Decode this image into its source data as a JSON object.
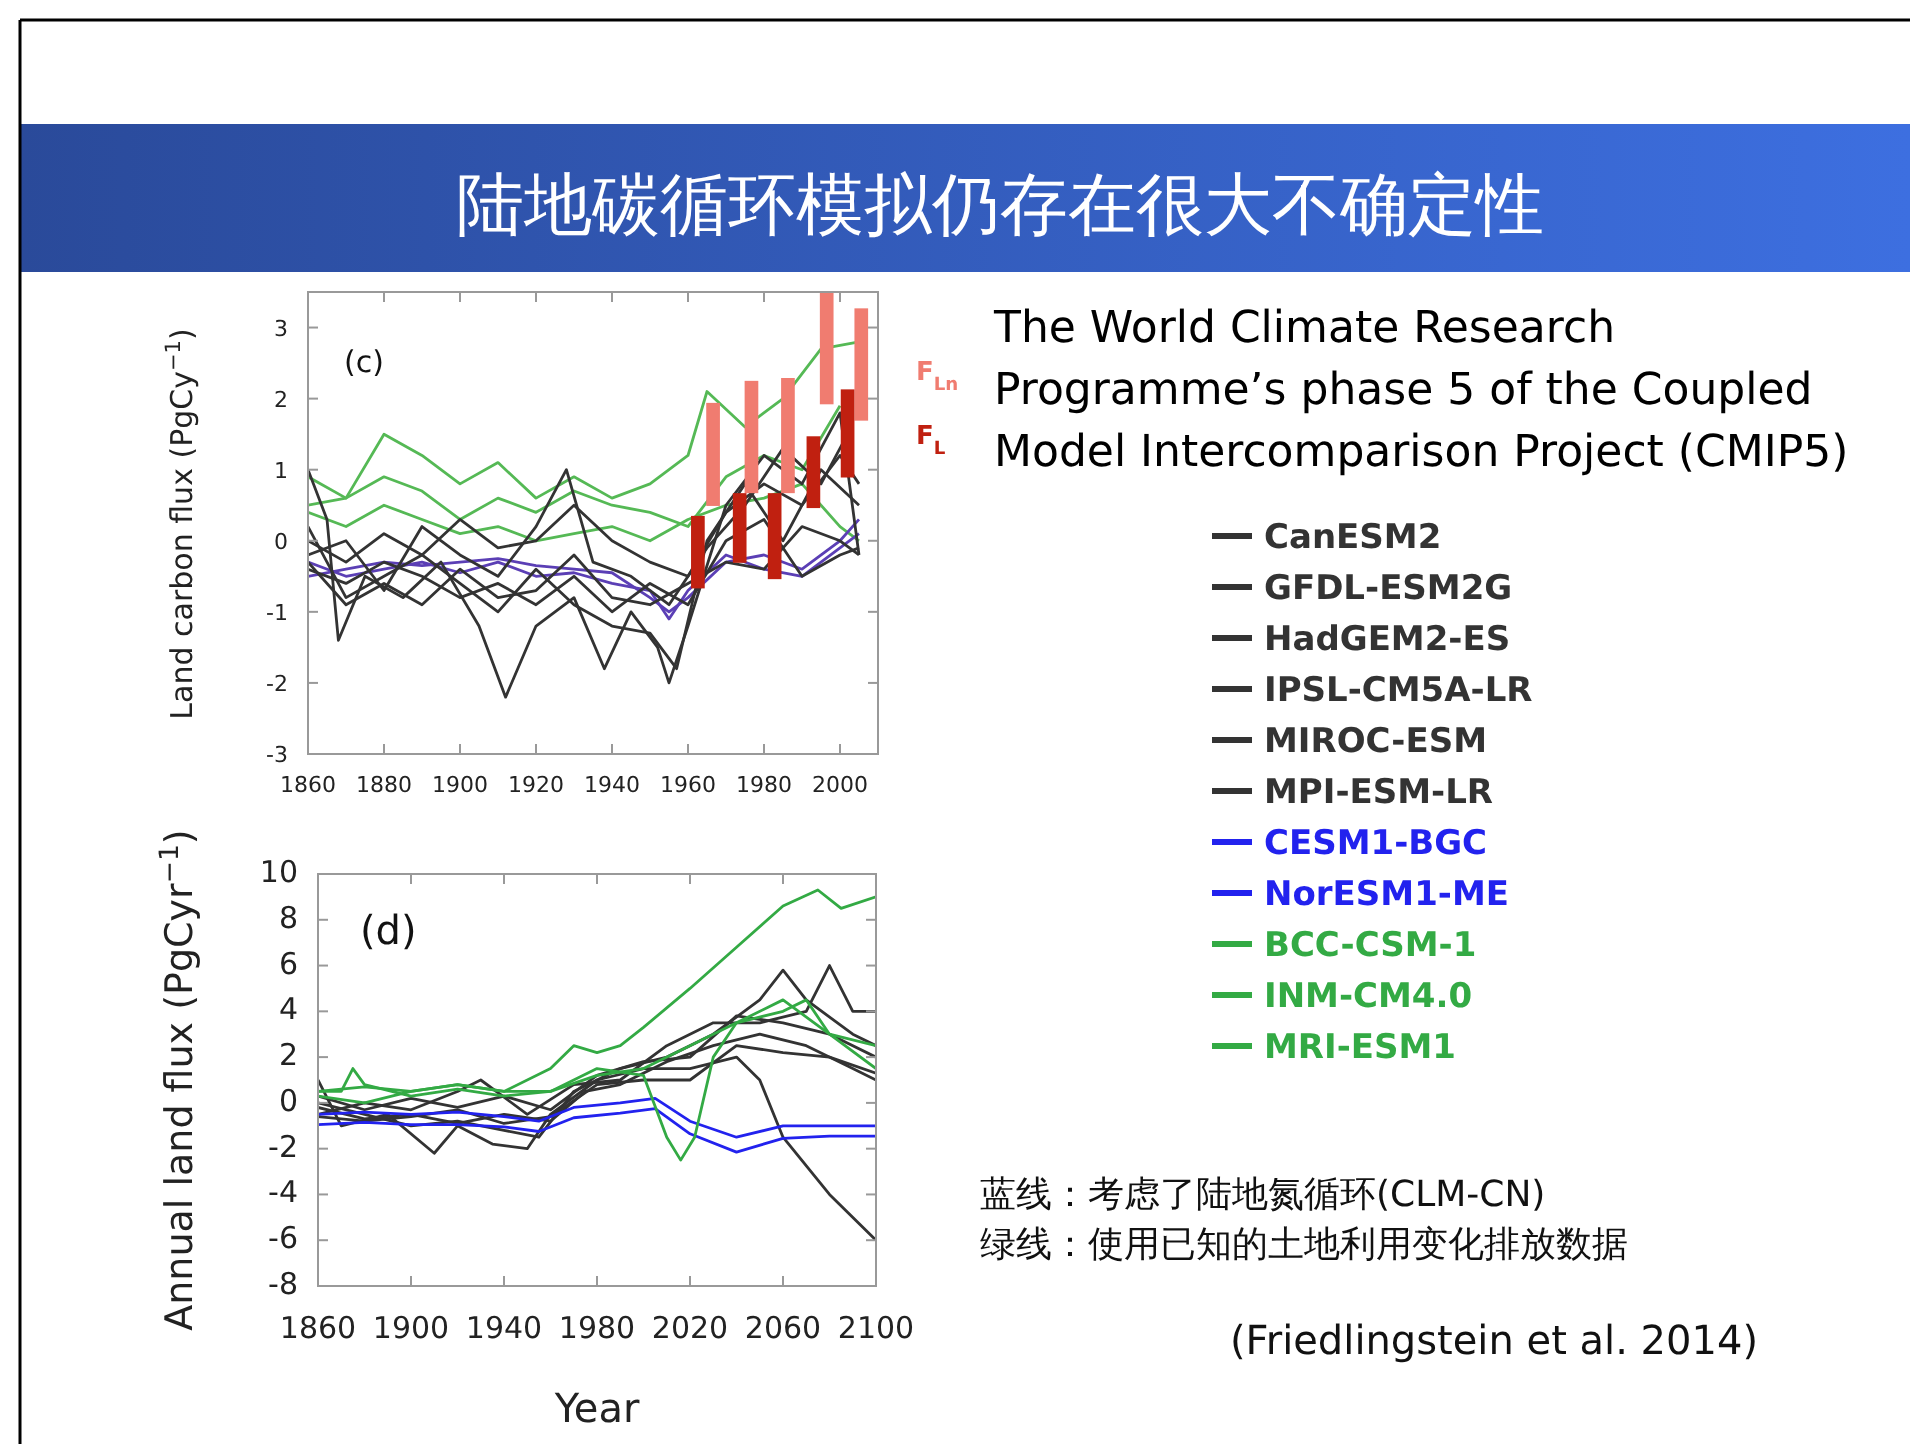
{
  "chart_data": [
    {
      "type": "other",
      "title": "陆地碳循环模拟仍存在很大不确定性",
      "subtitle": "The World Climate Research Programme’s phase 5 of the Coupled Model Intercomparison Project (CMIP5)",
      "annotations": [
        "蓝线：考虑了陆地氮循环(CLM-CN)",
        "绿线：使用已知的土地利用变化排放数据",
        "(Friedlingstein et al. 2014)"
      ]
    },
    {
      "type": "line",
      "ylabel": "Land carbon flux (PgCy$^{−1}$)",
      "annotations": [
        "(c)"
      ],
      "xlim": [
        1860,
        2010
      ],
      "ylim": [
        -3,
        3.5
      ],
      "xticks": [
        1860,
        1880,
        1900,
        1920,
        1940,
        1960,
        1980,
        2000
      ],
      "yticks": [
        -3,
        -2,
        -1,
        0,
        1,
        2,
        3
      ],
      "grid": false,
      "legend": "right",
      "series": [
        {
          "color": "#55b955",
          "x": [
            1860,
            1870,
            1880,
            1890,
            1900,
            1910,
            1920,
            1930,
            1940,
            1950,
            1960,
            1965,
            1975,
            1985,
            1995,
            2005
          ],
          "values": [
            0.5,
            0.6,
            1.5,
            1.2,
            0.8,
            1.1,
            0.6,
            0.9,
            0.6,
            0.8,
            1.2,
            2.1,
            1.6,
            2.0,
            2.7,
            2.8
          ]
        },
        {
          "color": "#55b955",
          "x": [
            1860,
            1870,
            1880,
            1890,
            1900,
            1910,
            1920,
            1930,
            1940,
            1950,
            1960,
            1970,
            1980,
            1990,
            2000
          ],
          "values": [
            0.9,
            0.6,
            0.9,
            0.7,
            0.3,
            0.6,
            0.4,
            0.7,
            0.5,
            0.4,
            0.2,
            0.9,
            1.2,
            1.0,
            1.9
          ]
        },
        {
          "color": "#55b955",
          "x": [
            1860,
            1870,
            1880,
            1890,
            1900,
            1910,
            1920,
            1930,
            1940,
            1950,
            1960,
            1970,
            1980,
            1990,
            2000,
            2005
          ],
          "values": [
            0.4,
            0.2,
            0.5,
            0.3,
            0.1,
            0.2,
            0.0,
            0.1,
            0.2,
            0.0,
            0.3,
            0.5,
            0.6,
            0.8,
            0.2,
            0.0
          ]
        },
        {
          "color": "#5b3fb5",
          "x": [
            1860,
            1870,
            1880,
            1890,
            1900,
            1910,
            1920,
            1930,
            1940,
            1950,
            1955,
            1960,
            1970,
            1980,
            1990,
            2000,
            2005
          ],
          "values": [
            -0.5,
            -0.4,
            -0.3,
            -0.35,
            -0.3,
            -0.25,
            -0.35,
            -0.4,
            -0.45,
            -0.8,
            -1.0,
            -0.8,
            -0.3,
            -0.2,
            -0.4,
            0.0,
            0.3
          ]
        },
        {
          "color": "#5b3fb5",
          "x": [
            1860,
            1870,
            1880,
            1890,
            1900,
            1910,
            1920,
            1930,
            1940,
            1950,
            1955,
            1960,
            1970,
            1980,
            1990,
            2000,
            2005
          ],
          "values": [
            -0.3,
            -0.5,
            -0.4,
            -0.3,
            -0.45,
            -0.3,
            -0.5,
            -0.45,
            -0.6,
            -0.7,
            -1.1,
            -0.7,
            -0.2,
            -0.4,
            -0.5,
            -0.1,
            0.1
          ]
        },
        {
          "color": "#333333",
          "x": [
            1860,
            1865,
            1868,
            1875,
            1885,
            1895,
            1905,
            1912,
            1920,
            1930,
            1938,
            1945,
            1952,
            1955,
            1960,
            1970,
            1980,
            1990,
            2000,
            2005
          ],
          "values": [
            1.0,
            0.3,
            -1.4,
            -0.5,
            -0.8,
            -0.3,
            -1.2,
            -2.2,
            -1.2,
            -0.8,
            -1.8,
            -1.0,
            -1.5,
            -2.0,
            -1.2,
            0.5,
            1.2,
            0.8,
            1.8,
            -0.2
          ]
        },
        {
          "color": "#333333",
          "x": [
            1860,
            1870,
            1880,
            1890,
            1900,
            1910,
            1920,
            1930,
            1940,
            1950,
            1957,
            1965,
            1975,
            1985,
            1995,
            2005
          ],
          "values": [
            0.2,
            -0.8,
            -0.5,
            -0.2,
            -0.6,
            -1.0,
            -0.4,
            -0.9,
            -1.2,
            -1.3,
            -1.8,
            0.0,
            0.8,
            0.0,
            1.0,
            0.5
          ]
        },
        {
          "color": "#333333",
          "x": [
            1860,
            1870,
            1880,
            1890,
            1900,
            1910,
            1920,
            1928,
            1935,
            1945,
            1955,
            1965,
            1975,
            1985,
            1995,
            2002
          ],
          "values": [
            -0.2,
            0.0,
            -0.7,
            0.2,
            -0.2,
            -0.5,
            0.2,
            1.0,
            -0.3,
            -0.5,
            -0.9,
            -0.1,
            0.5,
            1.3,
            0.8,
            1.5
          ]
        },
        {
          "color": "#333333",
          "x": [
            1860,
            1870,
            1880,
            1890,
            1900,
            1910,
            1920,
            1930,
            1940,
            1950,
            1960,
            1970,
            1980,
            1990,
            2000,
            2005
          ],
          "values": [
            -0.4,
            -0.6,
            -0.3,
            -0.5,
            -0.8,
            -0.6,
            -0.9,
            -0.5,
            -1.0,
            -0.6,
            -0.9,
            0.0,
            0.3,
            -0.5,
            -0.2,
            -0.1
          ]
        },
        {
          "color": "#333333",
          "x": [
            1860,
            1870,
            1880,
            1890,
            1900,
            1910,
            1920,
            1930,
            1940,
            1950,
            1960,
            1970,
            1980,
            1990,
            2000,
            2005
          ],
          "values": [
            0.0,
            -0.3,
            0.1,
            -0.2,
            0.3,
            -0.1,
            0.0,
            0.5,
            0.0,
            -0.3,
            -0.5,
            0.4,
            0.8,
            0.5,
            1.2,
            0.8
          ]
        },
        {
          "color": "#333333",
          "x": [
            1860,
            1870,
            1880,
            1890,
            1900,
            1910,
            1920,
            1930,
            1940,
            1950,
            1960,
            1970,
            1980,
            1990,
            2000,
            2005
          ],
          "values": [
            -0.3,
            -0.9,
            -0.6,
            -0.9,
            -0.4,
            -0.8,
            -0.7,
            -0.2,
            -0.8,
            -0.9,
            -0.6,
            -0.3,
            -0.4,
            0.2,
            0.0,
            -0.2
          ]
        },
        {
          "type": "bar",
          "name": "F$_{Ln}$",
          "color": "#f07c70",
          "x": [
            1966.6,
            1976.7,
            1986.3,
            1996.5,
            2005.6
          ],
          "base": [
            0.49,
            0.67,
            0.67,
            1.92,
            1.69
          ],
          "values": [
            1.45,
            1.58,
            1.62,
            1.58,
            1.58
          ]
        },
        {
          "type": "bar",
          "name": "F$_{L}$",
          "color": "#c02010",
          "x": [
            1962.6,
            1973.6,
            1982.8,
            1993,
            2002
          ],
          "base": [
            -0.67,
            -0.31,
            -0.54,
            0.46,
            0.89
          ],
          "values": [
            1.02,
            0.98,
            1.21,
            1.01,
            1.24
          ]
        }
      ]
    },
    {
      "type": "line",
      "xlabel": "Year",
      "ylabel": "Annual land flux (PgCyr$^{−1}$)",
      "annotations": [
        "(d)"
      ],
      "xlim": [
        1860,
        2100
      ],
      "ylim": [
        -8,
        10
      ],
      "xticks": [
        1860,
        1900,
        1940,
        1980,
        2020,
        2060,
        2100
      ],
      "yticks": [
        -8,
        -6,
        -4,
        -2,
        0,
        2,
        4,
        6,
        8,
        10
      ],
      "grid": false,
      "legend": "right",
      "series": [
        {
          "name": "CanESM2",
          "color": "#333333",
          "x": [
            1860,
            1870,
            1890,
            1910,
            1920,
            1935,
            1950,
            1960,
            1980,
            2000,
            2020,
            2040,
            2050,
            2060,
            2080,
            2100
          ],
          "values": [
            1.0,
            -1.0,
            -0.5,
            -2.2,
            -1.0,
            -1.8,
            -2.0,
            -0.5,
            1.0,
            1.5,
            1.5,
            2.0,
            1.0,
            -1.5,
            -4.0,
            -6.0
          ]
        },
        {
          "name": "GFDL-ESM2G",
          "color": "#333333",
          "x": [
            1860,
            1880,
            1900,
            1920,
            1940,
            1955,
            1970,
            1990,
            2010,
            2030,
            2050,
            2060,
            2070,
            2090,
            2100
          ],
          "values": [
            0.0,
            -0.5,
            -1.0,
            -0.8,
            -1.2,
            -1.5,
            0.5,
            1.5,
            2.0,
            3.0,
            4.5,
            5.8,
            4.5,
            3.0,
            2.5
          ]
        },
        {
          "name": "HadGEM2-ES",
          "color": "#333333",
          "x": [
            1860,
            1880,
            1900,
            1920,
            1930,
            1950,
            1970,
            1990,
            2010,
            2030,
            2050,
            2070,
            2080,
            2090,
            2100
          ],
          "values": [
            -0.5,
            0.0,
            -0.3,
            0.5,
            1.0,
            -0.5,
            0.8,
            1.0,
            2.5,
            3.5,
            3.5,
            4.0,
            6.0,
            4.0,
            4.0
          ]
        },
        {
          "name": "IPSL-CM5A-LR",
          "color": "#333333",
          "x": [
            1860,
            1880,
            1900,
            1920,
            1940,
            1960,
            1975,
            1990,
            2010,
            2030,
            2050,
            2070,
            2090,
            2100
          ],
          "values": [
            -0.2,
            -0.7,
            -0.5,
            -0.9,
            -0.5,
            -0.8,
            0.5,
            0.8,
            1.8,
            2.5,
            3.0,
            2.5,
            1.5,
            1.0
          ]
        },
        {
          "name": "MIROC-ESM",
          "color": "#333333",
          "x": [
            1860,
            1880,
            1900,
            1920,
            1940,
            1960,
            1980,
            2000,
            2020,
            2040,
            2060,
            2080,
            2100
          ],
          "values": [
            0.3,
            -0.3,
            0.2,
            -0.2,
            0.3,
            -0.3,
            1.2,
            1.8,
            2.0,
            3.8,
            3.5,
            3.0,
            2.0
          ]
        },
        {
          "name": "MPI-ESM-LR",
          "color": "#333333",
          "x": [
            1860,
            1880,
            1900,
            1920,
            1940,
            1960,
            1980,
            2000,
            2020,
            2040,
            2060,
            2080,
            2100
          ],
          "values": [
            -0.6,
            -0.8,
            -0.6,
            -0.3,
            -0.9,
            -0.6,
            0.8,
            1.0,
            1.0,
            2.5,
            2.2,
            2.0,
            1.3
          ]
        },
        {
          "name": "CESM1-BGC",
          "color": "#2222ee",
          "x": [
            1860,
            1880,
            1900,
            1920,
            1940,
            1955,
            1970,
            1990,
            2005,
            2020,
            2040,
            2060,
            2080,
            2100
          ],
          "values": [
            -0.5,
            -0.4,
            -0.5,
            -0.4,
            -0.6,
            -0.8,
            -0.2,
            0.0,
            0.2,
            -0.8,
            -1.5,
            -1.0,
            -1.0,
            -1.0
          ]
        },
        {
          "name": "NorESM1-ME",
          "color": "#2222ee",
          "x": [
            1860,
            1880,
            1900,
            1920,
            1940,
            1955,
            1970,
            1990,
            2005,
            2020,
            2040,
            2060,
            2080,
            2100
          ],
          "values": [
            -0.95,
            -0.85,
            -0.95,
            -0.95,
            -1.05,
            -1.25,
            -0.65,
            -0.45,
            -0.25,
            -1.35,
            -2.15,
            -1.55,
            -1.45,
            -1.45
          ]
        },
        {
          "name": "BCC-CSM-1",
          "color": "#33aa44",
          "x": [
            1860,
            1880,
            1900,
            1920,
            1940,
            1960,
            1970,
            1980,
            1990,
            2000,
            2020,
            2040,
            2060,
            2075,
            2085,
            2100
          ],
          "values": [
            0.5,
            0.7,
            0.5,
            0.8,
            0.5,
            1.5,
            2.5,
            2.2,
            2.5,
            3.3,
            5.0,
            6.8,
            8.6,
            9.3,
            8.5,
            9.0
          ]
        },
        {
          "name": "INM-CM4.0",
          "color": "#33aa44",
          "x": [
            1860,
            1870,
            1875,
            1880,
            1900,
            1920,
            1940,
            1960,
            1980,
            2000,
            2010,
            2016,
            2022,
            2030,
            2040,
            2060,
            2080,
            2100
          ],
          "values": [
            0.5,
            0.5,
            1.5,
            0.8,
            0.3,
            0.6,
            0.3,
            0.5,
            1.5,
            1.2,
            -1.5,
            -2.5,
            -1.5,
            2.0,
            3.5,
            4.5,
            3.0,
            1.5
          ]
        },
        {
          "name": "MRI-ESM1",
          "color": "#33aa44",
          "x": [
            1860,
            1880,
            1900,
            1920,
            1940,
            1960,
            1980,
            2000,
            2020,
            2040,
            2060,
            2070,
            2080,
            2100
          ],
          "values": [
            0.3,
            0.0,
            0.5,
            0.8,
            0.5,
            0.5,
            1.2,
            1.5,
            2.5,
            3.5,
            4.0,
            4.5,
            3.0,
            2.5
          ]
        }
      ]
    }
  ]
}
